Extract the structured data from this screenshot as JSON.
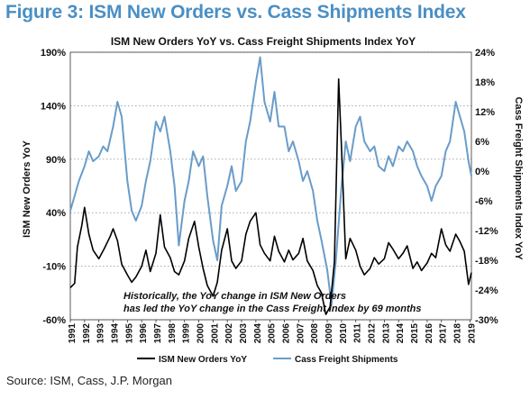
{
  "figure_title": "Figure 3: ISM New Orders vs. Cass Shipments Index",
  "source": "Source: ISM, Cass, J.P. Morgan",
  "colors": {
    "title": "#4a8fc4",
    "ism_line": "#000000",
    "cass_line": "#6a9cc9",
    "grid": "#777777",
    "axis_text": "#111111"
  },
  "chart_data": {
    "type": "line",
    "title": "ISM New Orders YoY vs. Cass Freight Shipments Index YoY",
    "ylabel_left": "ISM New Orders YoY",
    "ylabel_right": "Cass Freight Shipments Index YoY",
    "left_axis": {
      "ticks": [
        190,
        140,
        90,
        40,
        -10,
        -60
      ],
      "tick_labels": [
        "190%",
        "140%",
        "90%",
        "40%",
        "-10%",
        "-60%"
      ],
      "range": [
        -60,
        190
      ]
    },
    "right_axis": {
      "ticks": [
        24,
        18,
        12,
        6,
        0,
        -6,
        -12,
        -18,
        -24,
        -30
      ],
      "tick_labels": [
        "24%",
        "18%",
        "12%",
        "6%",
        "0%",
        "-6%",
        "-12%",
        "-18%",
        "-24%",
        "-30%"
      ],
      "range": [
        -30,
        24
      ]
    },
    "x_range": [
      1991,
      2019.1
    ],
    "x_tick_labels": [
      "1991",
      "1992",
      "1993",
      "1994",
      "1995",
      "1996",
      "1997",
      "1998",
      "1999",
      "2000",
      "2001",
      "2002",
      "2003",
      "2004",
      "2005",
      "2006",
      "2007",
      "2008",
      "2009",
      "2010",
      "2011",
      "2012",
      "2013",
      "2014",
      "2015",
      "2016",
      "2017",
      "2018",
      "2019"
    ],
    "grid": "horizontal dotted",
    "legend_position": "bottom",
    "annotation": "Historically, the YoY change in ISM New Orders has led the YoY change in the Cass Freight Index by 69 months",
    "annotation_lines": [
      "Historically, the YoY change in ISM New Orders",
      "has led the YoY change in the Cass Freight Index by 69 months"
    ],
    "series": [
      {
        "name": "ISM New Orders YoY",
        "axis": "left",
        "color": "#000000",
        "x": [
          1991.0,
          1991.3,
          1991.5,
          1991.8,
          1992.0,
          1992.3,
          1992.6,
          1993.0,
          1993.4,
          1993.8,
          1994.0,
          1994.3,
          1994.6,
          1995.0,
          1995.3,
          1995.6,
          1996.0,
          1996.3,
          1996.6,
          1997.0,
          1997.3,
          1997.6,
          1998.0,
          1998.3,
          1998.6,
          1999.0,
          1999.3,
          1999.7,
          2000.0,
          2000.3,
          2000.6,
          2001.0,
          2001.3,
          2001.6,
          2002.0,
          2002.3,
          2002.6,
          2003.0,
          2003.3,
          2003.6,
          2004.0,
          2004.3,
          2004.6,
          2005.0,
          2005.3,
          2005.6,
          2006.0,
          2006.3,
          2006.6,
          2007.0,
          2007.3,
          2007.6,
          2008.0,
          2008.3,
          2008.6,
          2008.9,
          2009.2,
          2009.5,
          2009.8,
          2010.0,
          2010.3,
          2010.6,
          2011.0,
          2011.3,
          2011.6,
          2012.0,
          2012.3,
          2012.6,
          2013.0,
          2013.3,
          2013.6,
          2014.0,
          2014.3,
          2014.6,
          2015.0,
          2015.3,
          2015.6,
          2016.0,
          2016.3,
          2016.6,
          2017.0,
          2017.3,
          2017.6,
          2018.0,
          2018.3,
          2018.6,
          2018.9,
          2019.1
        ],
        "values": [
          -30,
          -26,
          8,
          28,
          45,
          20,
          5,
          -3,
          7,
          18,
          25,
          14,
          -8,
          -18,
          -25,
          -20,
          -10,
          5,
          -15,
          2,
          38,
          8,
          -2,
          -15,
          -18,
          -5,
          16,
          32,
          8,
          -12,
          -28,
          -38,
          -25,
          5,
          25,
          -5,
          -12,
          -5,
          20,
          32,
          40,
          10,
          2,
          -5,
          18,
          4,
          -6,
          5,
          -4,
          2,
          16,
          -5,
          -14,
          -28,
          -35,
          -55,
          -48,
          -6,
          165,
          100,
          -3,
          16,
          5,
          -10,
          -18,
          -12,
          -2,
          -8,
          -3,
          12,
          6,
          -3,
          2,
          9,
          -12,
          -6,
          -14,
          -7,
          2,
          -2,
          25,
          10,
          4,
          20,
          13,
          4,
          -27,
          -16
        ]
      },
      {
        "name": "Cass Freight Shipments",
        "axis": "right",
        "color": "#6a9cc9",
        "x": [
          1991.0,
          1991.3,
          1991.6,
          1992.0,
          1992.3,
          1992.6,
          1993.0,
          1993.3,
          1993.6,
          1994.0,
          1994.3,
          1994.6,
          1995.0,
          1995.3,
          1995.6,
          1996.0,
          1996.3,
          1996.6,
          1997.0,
          1997.3,
          1997.6,
          1998.0,
          1998.3,
          1998.6,
          1999.0,
          1999.3,
          1999.6,
          2000.0,
          2000.3,
          2000.6,
          2001.0,
          2001.3,
          2001.6,
          2002.0,
          2002.3,
          2002.6,
          2003.0,
          2003.3,
          2003.6,
          2004.0,
          2004.3,
          2004.6,
          2005.0,
          2005.3,
          2005.6,
          2006.0,
          2006.3,
          2006.6,
          2007.0,
          2007.3,
          2007.6,
          2008.0,
          2008.3,
          2008.6,
          2009.0,
          2009.3,
          2009.6,
          2010.0,
          2010.3,
          2010.6,
          2011.0,
          2011.3,
          2011.6,
          2012.0,
          2012.3,
          2012.6,
          2013.0,
          2013.3,
          2013.6,
          2014.0,
          2014.3,
          2014.6,
          2015.0,
          2015.3,
          2015.6,
          2016.0,
          2016.3,
          2016.6,
          2017.0,
          2017.3,
          2017.6,
          2018.0,
          2018.3,
          2018.6,
          2018.9,
          2019.1
        ],
        "values": [
          -8,
          -5,
          -2,
          1,
          4,
          2,
          3,
          5,
          4,
          9,
          14,
          11,
          -2,
          -8,
          -10,
          -7,
          -2,
          2,
          10,
          8,
          11,
          4,
          -3,
          -15,
          -6,
          -2,
          4,
          1,
          3,
          -5,
          -14,
          -18,
          -7,
          -3,
          1,
          -4,
          -2,
          6,
          10,
          18,
          23,
          14,
          10,
          16,
          9,
          9,
          4,
          6,
          2,
          -2,
          0,
          -4,
          -10,
          -14,
          -20,
          -27,
          -18,
          -3,
          6,
          2,
          9,
          11,
          6,
          4,
          5,
          1,
          0,
          3,
          1,
          5,
          4,
          6,
          4,
          1,
          -1,
          -3,
          -6,
          -3,
          -1,
          4,
          6,
          14,
          11,
          8,
          2,
          -1
        ]
      }
    ]
  }
}
